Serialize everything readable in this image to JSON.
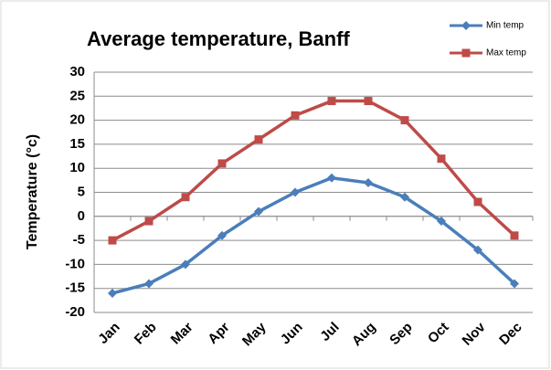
{
  "chart_data": {
    "type": "line",
    "title": "Average temperature, Banff",
    "ylabel": "Temperature (°c)",
    "categories": [
      "Jan",
      "Feb",
      "Mar",
      "Apr",
      "May",
      "Jun",
      "Jul",
      "Aug",
      "Sep",
      "Oct",
      "Nov",
      "Dec"
    ],
    "series": [
      {
        "name": "Min temp",
        "color": "#4a7ebb",
        "marker": "diamond",
        "values": [
          -16,
          -14,
          -10,
          -4,
          1,
          5,
          8,
          7,
          4,
          -1,
          -7,
          -14
        ]
      },
      {
        "name": "Max temp",
        "color": "#be4b48",
        "marker": "square",
        "values": [
          -5,
          -1,
          4,
          11,
          16,
          21,
          24,
          24,
          20,
          12,
          3,
          -4
        ]
      }
    ],
    "ylim": [
      -20,
      30
    ],
    "yticks": [
      -20,
      -15,
      -10,
      -5,
      0,
      5,
      10,
      15,
      20,
      25,
      30
    ],
    "grid": true,
    "legend": "upper right"
  }
}
